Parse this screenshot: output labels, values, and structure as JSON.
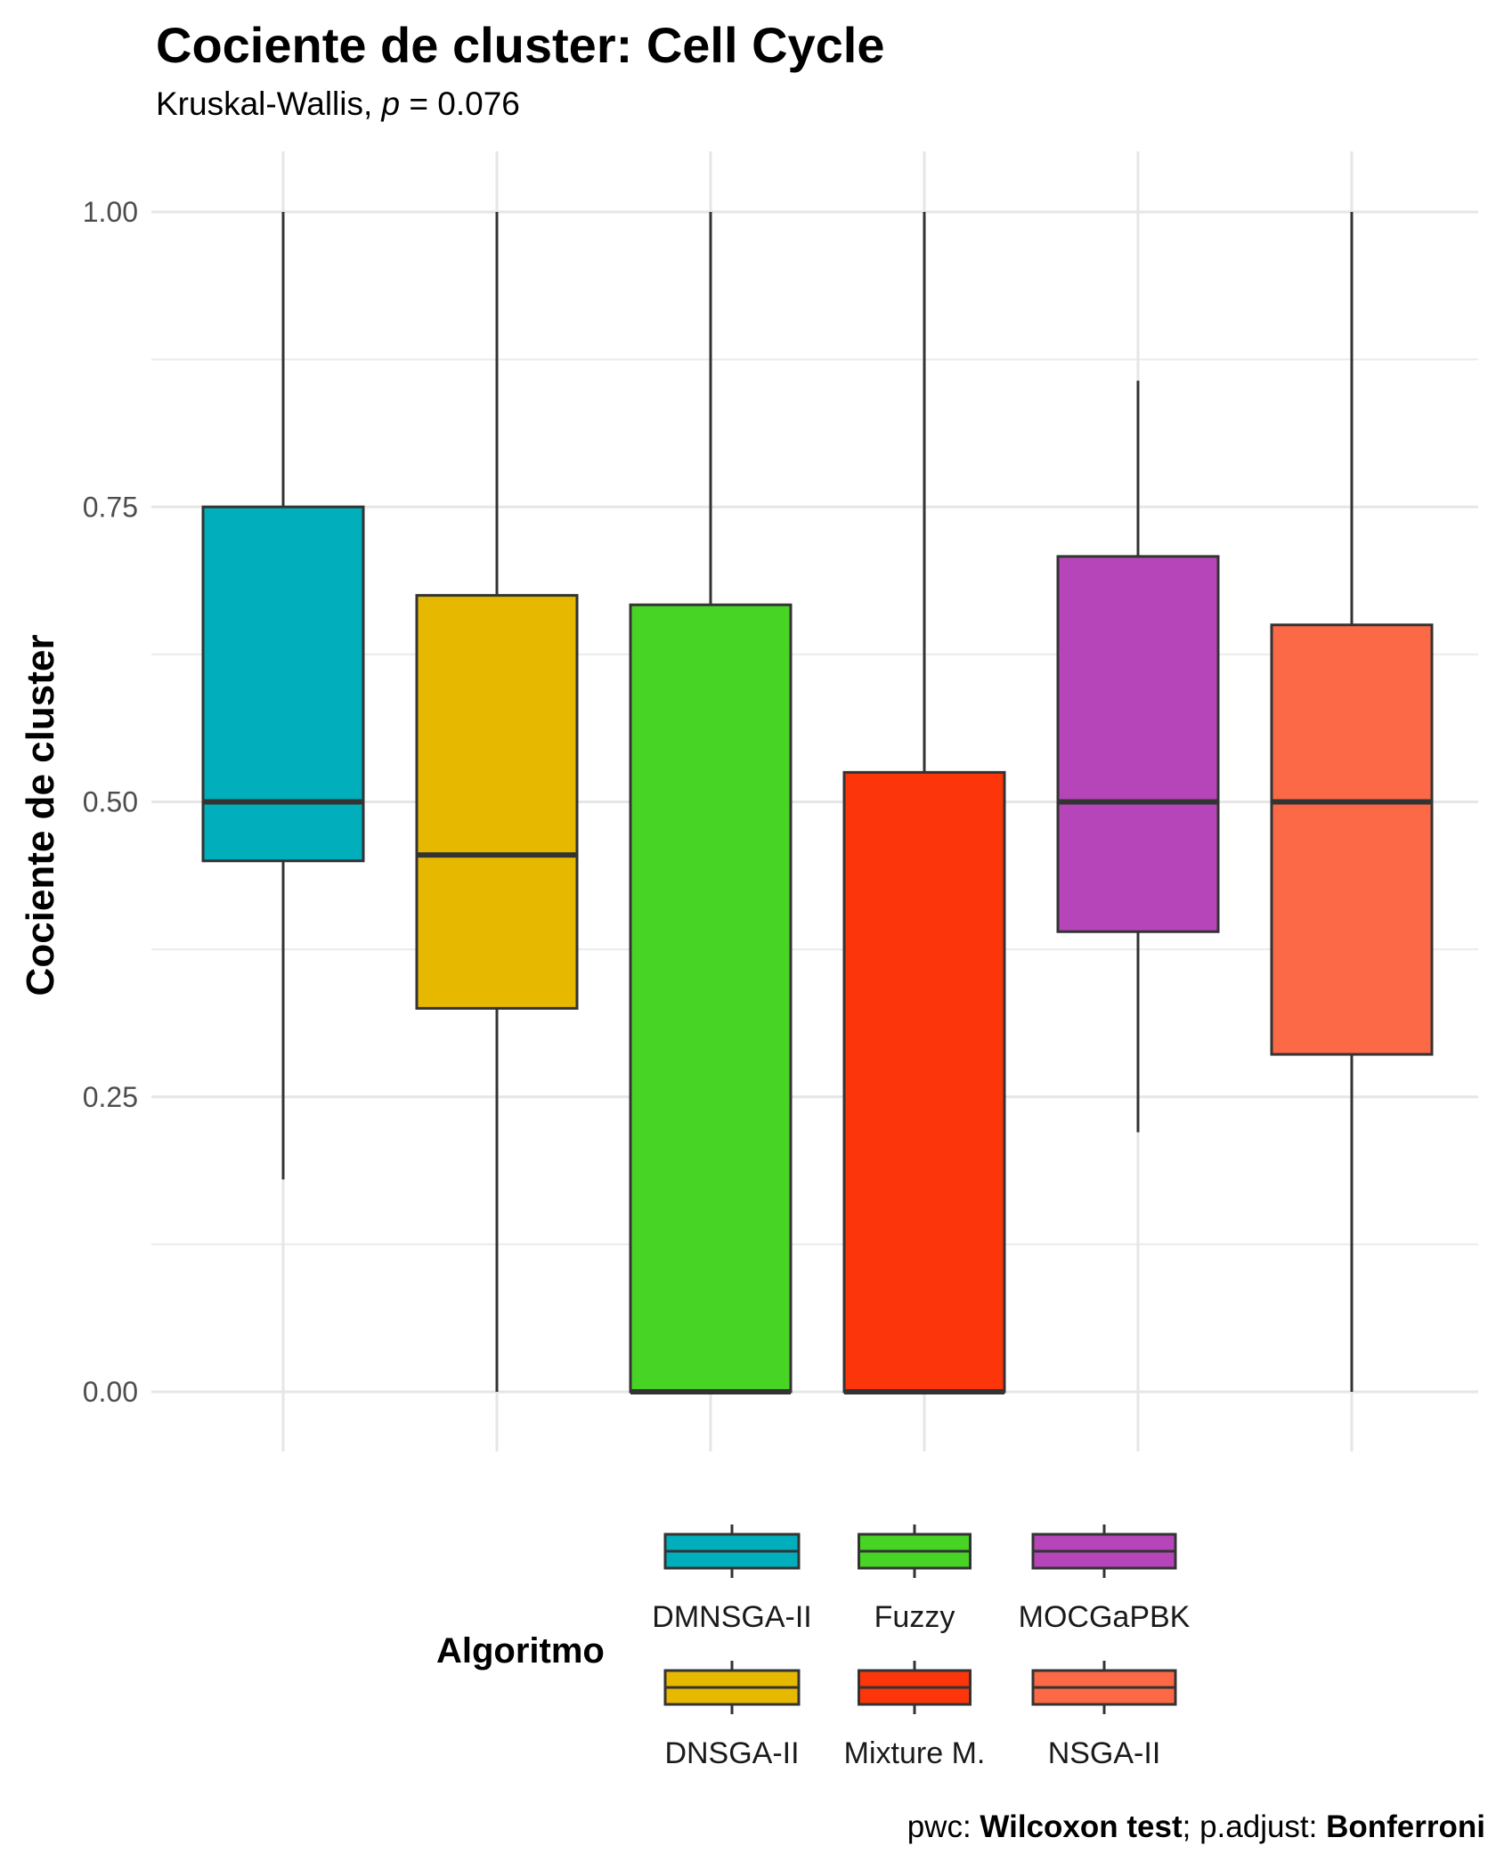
{
  "header": {
    "title": "Cociente de cluster: Cell Cycle",
    "subtitle_prefix": "Kruskal-Wallis, ",
    "subtitle_p": "p",
    "subtitle_suffix": " = 0.076"
  },
  "caption": {
    "prefix": "pwc: ",
    "test": "Wilcoxon test",
    "middle": "; p.adjust: ",
    "method": "Bonferroni"
  },
  "chart_data": {
    "type": "boxplot",
    "title": "Cociente de cluster: Cell Cycle",
    "subtitle": "Kruskal-Wallis, p = 0.076",
    "ylabel": "Cociente de cluster",
    "xlabel": "",
    "ylim": [
      0,
      1
    ],
    "yticks": [
      0.0,
      0.25,
      0.5,
      0.75,
      1.0
    ],
    "ytick_labels": [
      "0.00",
      "0.25",
      "0.50",
      "0.75",
      "1.00"
    ],
    "grid": true,
    "legend": {
      "title": "Algoritmo",
      "position": "bottom",
      "layout": [
        [
          "DMNSGA-II",
          "Fuzzy",
          "MOCGaPBK"
        ],
        [
          "DNSGA-II",
          "Mixture M.",
          "NSGA-II"
        ]
      ]
    },
    "series": [
      {
        "name": "DMNSGA-II",
        "color": "#00AFBB",
        "min": 0.18,
        "q1": 0.45,
        "median": 0.5,
        "q3": 0.75,
        "max": 1.0
      },
      {
        "name": "DNSGA-II",
        "color": "#E7B800",
        "min": 0.0,
        "q1": 0.325,
        "median": 0.455,
        "q3": 0.675,
        "max": 1.0
      },
      {
        "name": "Fuzzy",
        "color": "#47D424",
        "min": 0.0,
        "q1": 0.0,
        "median": 0.0,
        "q3": 0.667,
        "max": 1.0
      },
      {
        "name": "Mixture M.",
        "color": "#FC350A",
        "min": 0.0,
        "q1": 0.0,
        "median": 0.0,
        "q3": 0.525,
        "max": 1.0
      },
      {
        "name": "MOCGaPBK",
        "color": "#B645B9",
        "min": 0.22,
        "q1": 0.39,
        "median": 0.5,
        "q3": 0.708,
        "max": 0.857
      },
      {
        "name": "NSGA-II",
        "color": "#FC6946",
        "min": 0.0,
        "q1": 0.286,
        "median": 0.5,
        "q3": 0.65,
        "max": 1.0
      }
    ]
  }
}
